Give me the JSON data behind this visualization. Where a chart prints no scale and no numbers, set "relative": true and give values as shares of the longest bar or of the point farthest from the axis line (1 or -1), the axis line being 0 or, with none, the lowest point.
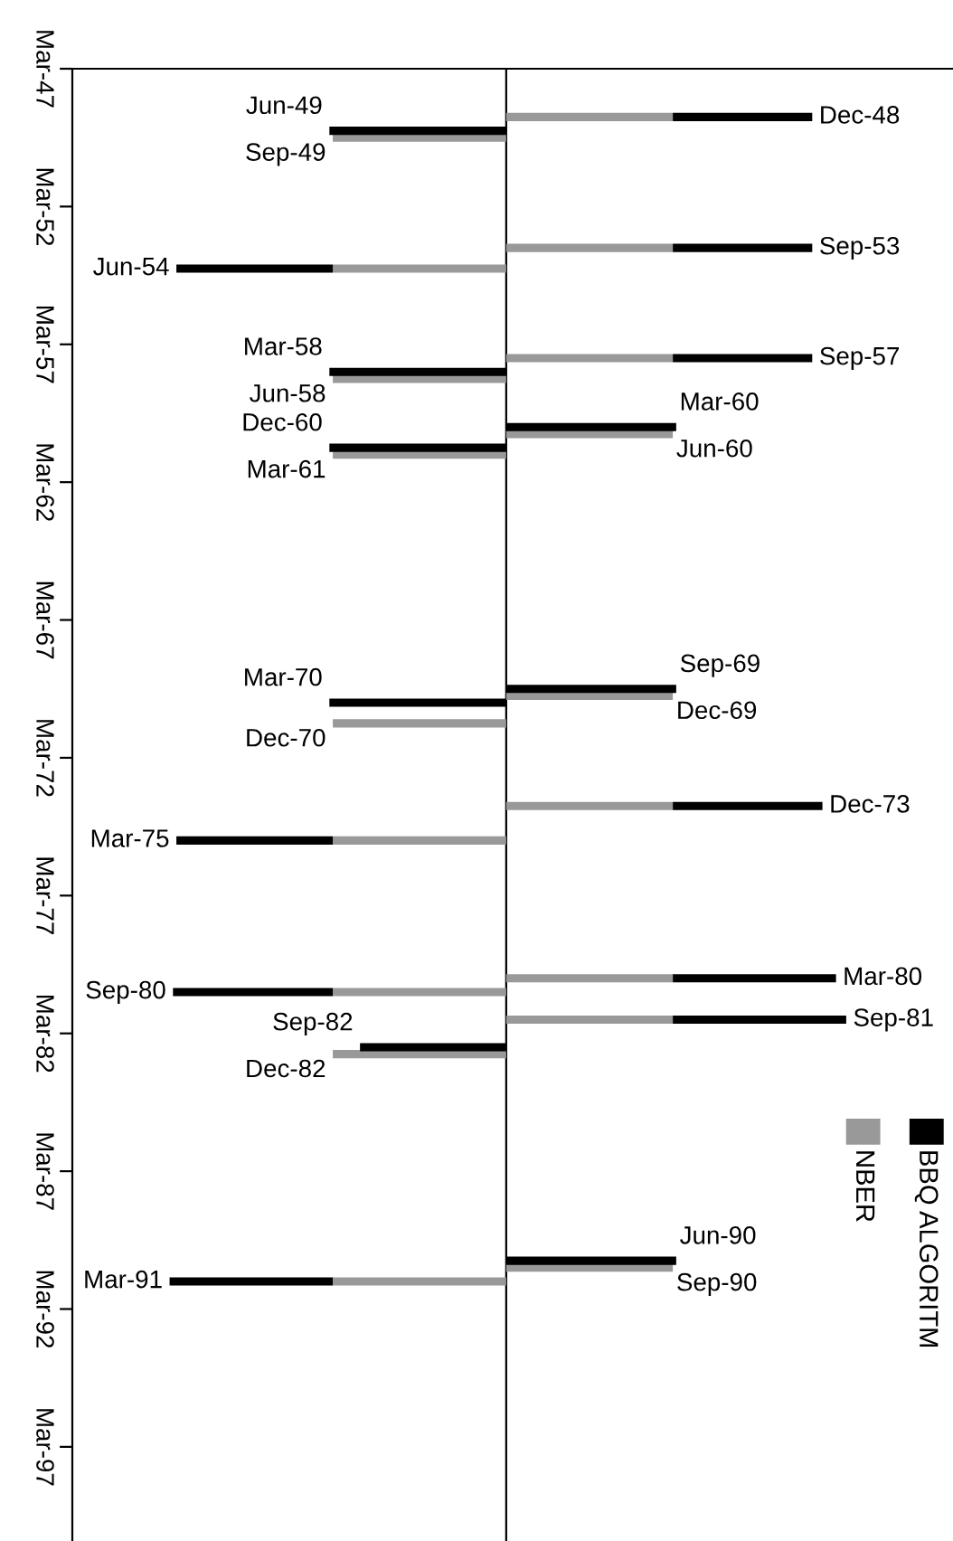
{
  "chart_data": {
    "type": "bar",
    "orientation": "horizontal",
    "relative": true,
    "ylim": [
      "2000-08",
      "1947-03"
    ],
    "yticks": [
      {
        "value": "1947-03",
        "label": "Mar-47"
      },
      {
        "value": "1952-03",
        "label": "Mar-52"
      },
      {
        "value": "1957-03",
        "label": "Mar-57"
      },
      {
        "value": "1962-03",
        "label": "Mar-62"
      },
      {
        "value": "1967-03",
        "label": "Mar-67"
      },
      {
        "value": "1972-03",
        "label": "Mar-72"
      },
      {
        "value": "1977-03",
        "label": "Mar-77"
      },
      {
        "value": "1982-03",
        "label": "Mar-82"
      },
      {
        "value": "1987-03",
        "label": "Mar-87"
      },
      {
        "value": "1992-03",
        "label": "Mar-92"
      },
      {
        "value": "1997-03",
        "label": "Mar-97"
      }
    ],
    "series": [
      {
        "name": "NBER",
        "color": "#999999",
        "values": [
          0.49,
          null,
          -0.51,
          0.49,
          -0.51,
          0.49,
          null,
          -0.51,
          null,
          0.49,
          null,
          -0.51,
          null,
          0.49,
          null,
          -0.51,
          0.49,
          -0.51,
          0.49,
          -0.51,
          0.49,
          null,
          -0.51,
          null,
          0.49,
          -0.51
        ]
      },
      {
        "name": "BBQ ALGORITM",
        "color": "#000000",
        "values": [
          0.41,
          -0.52,
          null,
          0.41,
          -0.46,
          0.41,
          -0.52,
          null,
          0.5,
          null,
          -0.52,
          null,
          0.5,
          null,
          -0.52,
          null,
          0.44,
          -0.46,
          0.48,
          -0.47,
          0.51,
          -0.43,
          null,
          0.5,
          null,
          -0.48
        ]
      }
    ],
    "x": [
      "1948-12",
      "1949-06",
      "1949-09",
      "1953-09",
      "1954-06",
      "1957-09",
      "1958-03",
      "1958-06",
      "1960-03",
      "1960-06",
      "1960-12",
      "1961-03",
      "1969-09",
      "1969-12",
      "1970-03",
      "1970-12",
      "1973-12",
      "1975-03",
      "1980-03",
      "1980-09",
      "1981-09",
      "1982-09",
      "1982-12",
      "1990-06",
      "1990-09",
      "1991-03"
    ],
    "stacked": true,
    "annotations": [
      {
        "text": "Dec-48",
        "x": 0.9,
        "y": "1948-12"
      },
      {
        "text": "Jun-49",
        "x": -0.52,
        "y": "1949-06"
      },
      {
        "text": "Sep-49",
        "x": -0.51,
        "y": "1949-09"
      },
      {
        "text": "Sep-53",
        "x": 0.9,
        "y": "1953-09"
      },
      {
        "text": "Jun-54",
        "x": -0.97,
        "y": "1954-06"
      },
      {
        "text": "Sep-57",
        "x": 0.9,
        "y": "1957-09"
      },
      {
        "text": "Mar-58",
        "x": -0.52,
        "y": "1958-03"
      },
      {
        "text": "Jun-58",
        "x": -0.51,
        "y": "1958-06"
      },
      {
        "text": "Mar-60",
        "x": 0.5,
        "y": "1960-03"
      },
      {
        "text": "Jun-60",
        "x": 0.49,
        "y": "1960-06"
      },
      {
        "text": "Dec-60",
        "x": -0.52,
        "y": "1960-12"
      },
      {
        "text": "Mar-61",
        "x": -0.51,
        "y": "1961-03"
      },
      {
        "text": "Sep-69",
        "x": 0.5,
        "y": "1969-09"
      },
      {
        "text": "Dec-69",
        "x": 0.49,
        "y": "1969-12"
      },
      {
        "text": "Mar-70",
        "x": -0.52,
        "y": "1970-03"
      },
      {
        "text": "Dec-70",
        "x": -0.51,
        "y": "1970-12"
      },
      {
        "text": "Dec-73",
        "x": 0.93,
        "y": "1973-12"
      },
      {
        "text": "Mar-75",
        "x": -0.97,
        "y": "1975-03"
      },
      {
        "text": "Mar-80",
        "x": 0.97,
        "y": "1980-03"
      },
      {
        "text": "Sep-80",
        "x": -0.98,
        "y": "1980-09"
      },
      {
        "text": "Sep-81",
        "x": 1,
        "y": "1981-09"
      },
      {
        "text": "Sep-82",
        "x": -0.43,
        "y": "1982-09"
      },
      {
        "text": "Dec-82",
        "x": -0.51,
        "y": "1982-12"
      },
      {
        "text": "Jun-90",
        "x": 0.5,
        "y": "1990-06"
      },
      {
        "text": "Sep-90",
        "x": 0.49,
        "y": "1990-09"
      },
      {
        "text": "Mar-91",
        "x": -0.99,
        "y": "1991-03"
      }
    ],
    "legend": "bottom right",
    "grid": false
  }
}
